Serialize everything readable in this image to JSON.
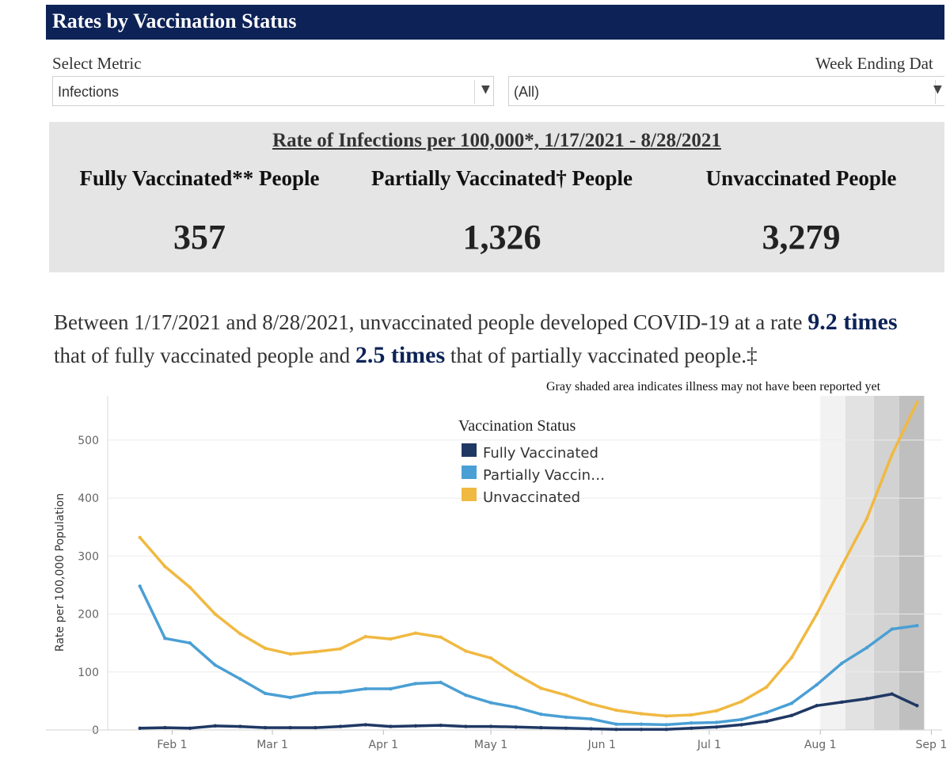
{
  "header": {
    "title": "Rates by Vaccination Status"
  },
  "filters": {
    "metric_label": "Select Metric",
    "metric_value": "Infections",
    "week_label": "Week Ending Dat",
    "week_value": "(All)"
  },
  "summary": {
    "title": "Rate of Infections per 100,000*, 1/17/2021 - 8/28/2021",
    "cards": [
      {
        "label": "Fully Vaccinated** People",
        "value": "357"
      },
      {
        "label": "Partially Vaccinated† People",
        "value": "1,326"
      },
      {
        "label": "Unvaccinated People",
        "value": "3,279"
      }
    ]
  },
  "sentence": {
    "part1": "Between 1/17/2021 and 8/28/2021, unvaccinated people developed COVID-19 at a rate ",
    "hl1": "9.2 times",
    "part2": " that of fully vaccinated people and ",
    "hl2": "2.5 times",
    "part3": " that of partially vaccinated people.‡"
  },
  "gray_note": "Gray shaded area indicates illness may not have been reported yet",
  "chart_data": {
    "type": "line",
    "title": "",
    "xlabel": "",
    "ylabel": "Rate per 100,000 Population",
    "ylim": [
      0,
      560
    ],
    "yticks": [
      0,
      100,
      200,
      300,
      400,
      500
    ],
    "xlim": [
      "2021-01-14",
      "2021-09-04"
    ],
    "xticks": [
      {
        "date": "2021-02-01",
        "label": "Feb 1"
      },
      {
        "date": "2021-03-01",
        "label": "Mar 1"
      },
      {
        "date": "2021-04-01",
        "label": "Apr 1"
      },
      {
        "date": "2021-05-01",
        "label": "May 1"
      },
      {
        "date": "2021-06-01",
        "label": "Jun 1"
      },
      {
        "date": "2021-07-01",
        "label": "Jul 1"
      },
      {
        "date": "2021-08-01",
        "label": "Aug 1"
      },
      {
        "date": "2021-09-01",
        "label": "Sep 1"
      }
    ],
    "grid": true,
    "legend": {
      "title": "Vaccination Status",
      "position": "top-center"
    },
    "x": [
      "2021-01-23",
      "2021-01-30",
      "2021-02-06",
      "2021-02-13",
      "2021-02-20",
      "2021-02-27",
      "2021-03-06",
      "2021-03-13",
      "2021-03-20",
      "2021-03-27",
      "2021-04-03",
      "2021-04-10",
      "2021-04-17",
      "2021-04-24",
      "2021-05-01",
      "2021-05-08",
      "2021-05-15",
      "2021-05-22",
      "2021-05-29",
      "2021-06-05",
      "2021-06-12",
      "2021-06-19",
      "2021-06-26",
      "2021-07-03",
      "2021-07-10",
      "2021-07-17",
      "2021-07-24",
      "2021-07-31",
      "2021-08-07",
      "2021-08-14",
      "2021-08-21",
      "2021-08-28"
    ],
    "series": [
      {
        "name": "Fully Vaccinated",
        "color": "#1f3864",
        "values": [
          3,
          4,
          3,
          7,
          6,
          4,
          4,
          4,
          6,
          9,
          6,
          7,
          8,
          6,
          6,
          5,
          4,
          3,
          2,
          1,
          1,
          1,
          3,
          5,
          9,
          15,
          25,
          42,
          48,
          54,
          62,
          42
        ]
      },
      {
        "name": "Partially Vaccin…",
        "color": "#4a9fd4",
        "values": [
          248,
          158,
          150,
          112,
          88,
          63,
          56,
          64,
          65,
          71,
          71,
          80,
          82,
          60,
          47,
          39,
          27,
          22,
          19,
          10,
          10,
          9,
          12,
          13,
          18,
          30,
          46,
          78,
          115,
          142,
          174,
          180
        ]
      },
      {
        "name": "Unvaccinated",
        "color": "#f0b942",
        "values": [
          332,
          282,
          246,
          200,
          166,
          141,
          131,
          135,
          140,
          161,
          157,
          167,
          160,
          136,
          124,
          96,
          72,
          60,
          45,
          34,
          28,
          24,
          26,
          33,
          49,
          74,
          125,
          200,
          283,
          365,
          475,
          565
        ]
      }
    ],
    "shaded_ranges": [
      {
        "from": "2021-08-01",
        "to": "2021-08-08",
        "color": "#f2f2f2"
      },
      {
        "from": "2021-08-08",
        "to": "2021-08-16",
        "color": "#e2e2e2"
      },
      {
        "from": "2021-08-16",
        "to": "2021-08-23",
        "color": "#d2d2d2"
      },
      {
        "from": "2021-08-23",
        "to": "2021-08-30",
        "color": "#bfbfbf"
      }
    ]
  }
}
